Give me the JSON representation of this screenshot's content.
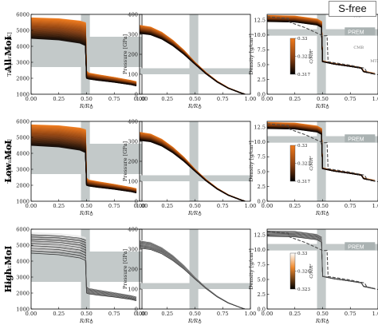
{
  "badge": "S-free",
  "rows": [
    "All MoI",
    "Low MoI",
    "High MoI"
  ],
  "annotations": {
    "icb": "ICB",
    "cmb": "CMB",
    "mtz": "MTZ",
    "prem": "PREM"
  },
  "colors": {
    "band": "#c3c9c9",
    "cmap_top": "#f07a1c",
    "cmap_mid": "#8a3f10",
    "cmap_bottom": "#000000",
    "cmap_light": "#f6c9a1",
    "prem_label_bg": "#aab2b2"
  },
  "chart_data": [
    {
      "type": "line",
      "panel": "temperature",
      "xlabel": "R/R♁",
      "ylabel": "Temperature [K]",
      "xlim": [
        0.0,
        1.0
      ],
      "ylim": [
        1000,
        6000
      ],
      "xticks": [
        "0.00",
        "0.25",
        "0.50",
        "0.75",
        "1.00"
      ],
      "yticks": [
        "1000",
        "2000",
        "3000",
        "4000",
        "5000",
        "6000"
      ],
      "grid": false,
      "shaded_x_band": [
        0.45,
        0.53
      ],
      "shaded_y_band": [
        2700,
        4600
      ],
      "series": [
        {
          "x": [
            0.0,
            0.25,
            0.44,
            0.49,
            0.5,
            0.52,
            0.6,
            0.75,
            0.9,
            0.95
          ],
          "y": [
            5780,
            5720,
            5580,
            5480,
            2450,
            2320,
            2220,
            2050,
            1860,
            1780
          ]
        },
        {
          "x": [
            0.0,
            0.25,
            0.44,
            0.49,
            0.5,
            0.52,
            0.6,
            0.75,
            0.9,
            0.95
          ],
          "y": [
            5200,
            5120,
            4950,
            4800,
            2250,
            2150,
            2050,
            1900,
            1720,
            1650
          ]
        },
        {
          "x": [
            0.0,
            0.25,
            0.44,
            0.49,
            0.5,
            0.52,
            0.6,
            0.75,
            0.9,
            0.95
          ],
          "y": [
            4500,
            4400,
            4200,
            4050,
            2000,
            1950,
            1870,
            1750,
            1600,
            1520
          ]
        }
      ]
    },
    {
      "type": "line",
      "panel": "pressure",
      "xlabel": "R/R♁",
      "ylabel": "Pressure [GPa]",
      "xlim": [
        0.0,
        1.0
      ],
      "ylim": [
        0,
        400
      ],
      "xticks": [
        "0.00",
        "0.25",
        "0.50",
        "0.75",
        "1.00"
      ],
      "yticks": [
        "0",
        "100",
        "200",
        "300",
        "400"
      ],
      "grid": false,
      "shaded_x_band": [
        0.45,
        0.53
      ],
      "shaded_y_band": [
        100,
        130
      ],
      "series": [
        {
          "x": [
            0.0,
            0.1,
            0.2,
            0.3,
            0.4,
            0.5,
            0.6,
            0.7,
            0.8,
            0.9,
            0.95
          ],
          "y": [
            345,
            336,
            310,
            270,
            220,
            160,
            108,
            65,
            32,
            10,
            0
          ]
        },
        {
          "x": [
            0.0,
            0.1,
            0.2,
            0.3,
            0.4,
            0.5,
            0.6,
            0.7,
            0.8,
            0.9,
            0.95
          ],
          "y": [
            325,
            317,
            293,
            256,
            210,
            155,
            105,
            63,
            31,
            10,
            0
          ]
        },
        {
          "x": [
            0.0,
            0.1,
            0.2,
            0.3,
            0.4,
            0.5,
            0.6,
            0.7,
            0.8,
            0.9,
            0.95
          ],
          "y": [
            305,
            298,
            277,
            243,
            200,
            150,
            102,
            61,
            30,
            9,
            0
          ]
        }
      ]
    },
    {
      "type": "line",
      "panel": "density",
      "xlabel": "R/R♁",
      "ylabel": "Density [g/cm³]",
      "xlim": [
        0.0,
        1.0
      ],
      "ylim": [
        0.0,
        13.5
      ],
      "xticks": [
        "0.00",
        "0.25",
        "0.50",
        "0.75",
        "1.00"
      ],
      "yticks": [
        "0.0",
        "2.5",
        "5.0",
        "7.5",
        "10.0",
        "12.5"
      ],
      "grid": false,
      "shaded_x_band": [
        0.45,
        0.53
      ],
      "shaded_y_band": [
        9.9,
        11.0
      ],
      "prem_label": "PREM",
      "colorbar_label": "C/MR²",
      "series": [
        {
          "name": "PREM",
          "x": [
            0.0,
            0.19,
            0.2,
            0.35,
            0.5,
            0.54,
            0.55,
            0.75,
            0.88,
            0.9,
            1.0
          ],
          "y": [
            13.1,
            12.8,
            12.2,
            11.2,
            9.9,
            9.9,
            5.5,
            4.9,
            4.4,
            3.7,
            3.3
          ]
        },
        {
          "x": [
            0.0,
            0.25,
            0.45,
            0.49,
            0.5,
            0.6,
            0.75,
            0.85,
            0.87,
            0.97
          ],
          "y": [
            13.3,
            13.2,
            12.7,
            12.3,
            5.6,
            5.2,
            4.8,
            4.5,
            3.9,
            3.5
          ]
        },
        {
          "x": [
            0.0,
            0.25,
            0.45,
            0.49,
            0.5,
            0.6,
            0.75,
            0.85,
            0.87,
            0.97
          ],
          "y": [
            12.3,
            12.2,
            11.7,
            11.3,
            5.5,
            5.1,
            4.7,
            4.4,
            3.8,
            3.4
          ]
        }
      ]
    }
  ],
  "colorbars": [
    {
      "ticks": [
        "0.33",
        "0.323",
        "0.317"
      ],
      "label": "C/MR²"
    },
    {
      "ticks": [
        "0.33",
        "0.323",
        "0.317"
      ],
      "label": "C/MR²"
    },
    {
      "ticks": [
        "0.33",
        "0.326",
        "0.323"
      ],
      "label": "C/MR²"
    }
  ]
}
